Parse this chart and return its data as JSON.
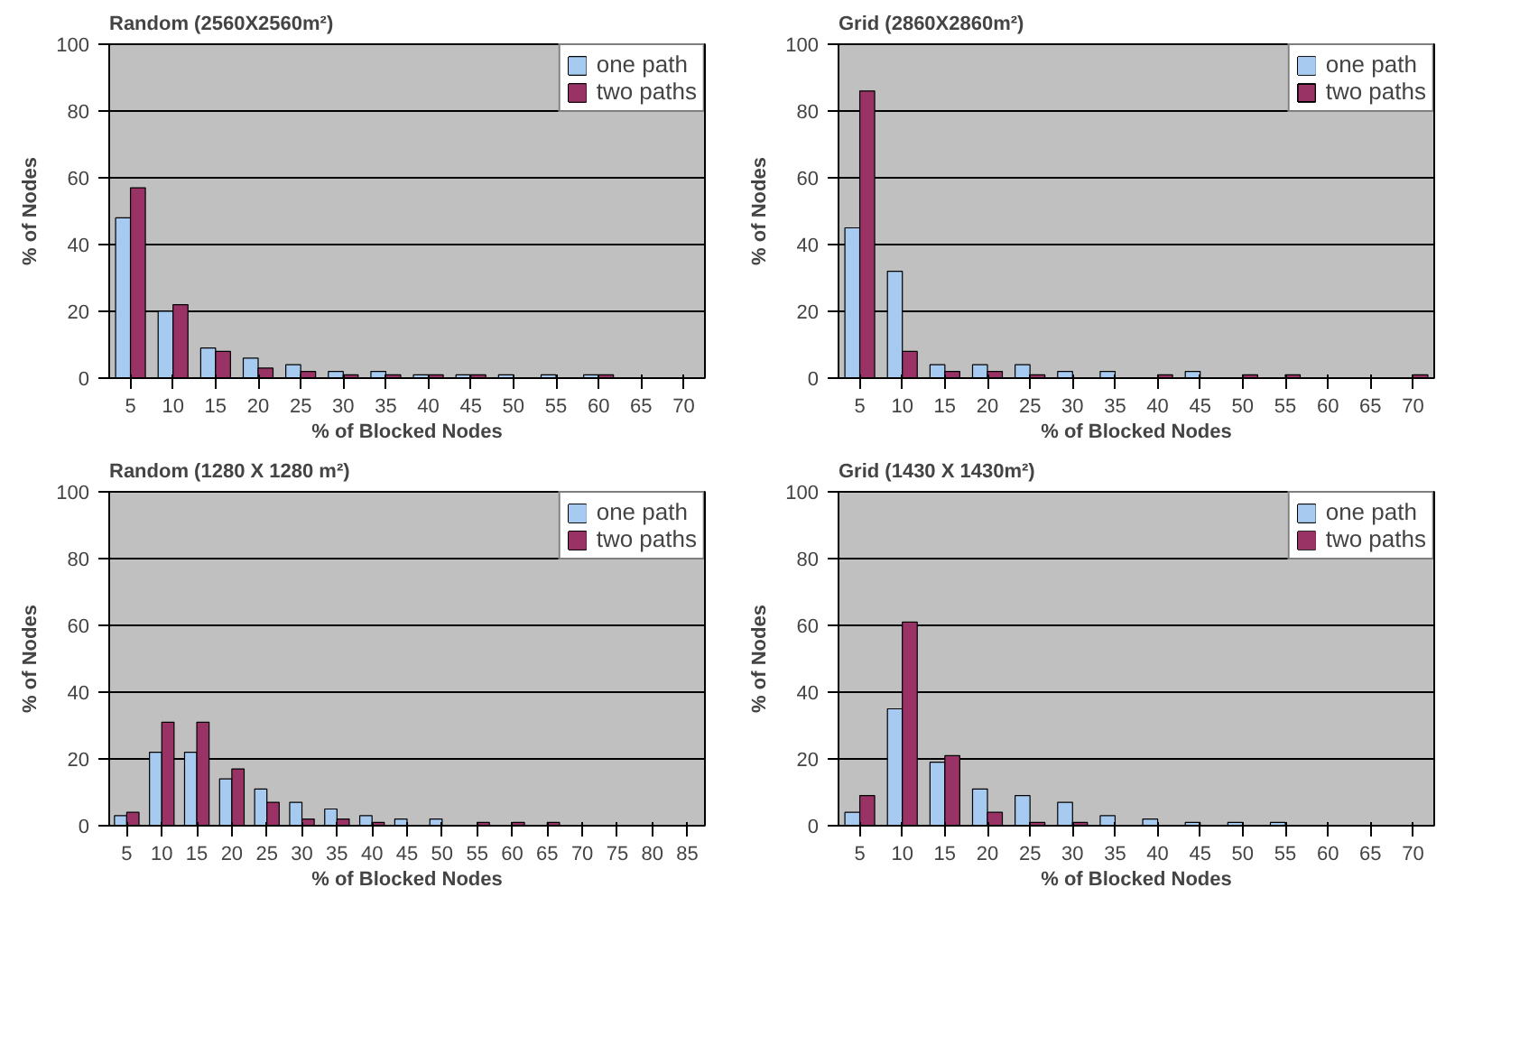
{
  "chart_data": [
    {
      "type": "bar",
      "title": "Random  (2560X2560m²)",
      "xlabel": "% of Blocked Nodes",
      "ylabel": "% of Nodes",
      "categories": [
        "5",
        "10",
        "15",
        "20",
        "25",
        "30",
        "35",
        "40",
        "45",
        "50",
        "55",
        "60",
        "65",
        "70"
      ],
      "ylim": [
        0,
        100
      ],
      "yticks": [
        0,
        20,
        40,
        60,
        80,
        100
      ],
      "grid": "y",
      "legend": "top right",
      "series": [
        {
          "name": "one path",
          "color": "#a6caf0",
          "values": [
            48,
            20,
            9,
            6,
            4,
            2,
            2,
            1,
            1,
            1,
            1,
            1,
            0,
            0
          ]
        },
        {
          "name": "two paths",
          "color": "#993366",
          "values": [
            57,
            22,
            8,
            3,
            2,
            1,
            1,
            1,
            1,
            0,
            0,
            1,
            0,
            0
          ]
        }
      ]
    },
    {
      "type": "bar",
      "title": "Grid (2860X2860m²)",
      "xlabel": "% of Blocked Nodes",
      "ylabel": "% of Nodes",
      "categories": [
        "5",
        "10",
        "15",
        "20",
        "25",
        "30",
        "35",
        "40",
        "45",
        "50",
        "55",
        "60",
        "65",
        "70"
      ],
      "ylim": [
        0,
        100
      ],
      "yticks": [
        0,
        20,
        40,
        60,
        80,
        100
      ],
      "grid": "y",
      "legend": "top right",
      "series": [
        {
          "name": "one path",
          "color": "#a6caf0",
          "values": [
            45,
            32,
            4,
            4,
            4,
            2,
            2,
            0,
            2,
            0,
            0,
            0,
            0,
            0
          ]
        },
        {
          "name": "two paths",
          "color": "#993366",
          "values": [
            86,
            8,
            2,
            2,
            1,
            0,
            0,
            1,
            0,
            1,
            1,
            0,
            0,
            1
          ]
        }
      ]
    },
    {
      "type": "bar",
      "title": "Random  (1280 X 1280 m²)",
      "xlabel": "% of Blocked Nodes",
      "ylabel": "% of Nodes",
      "categories": [
        "5",
        "10",
        "15",
        "20",
        "25",
        "30",
        "35",
        "40",
        "45",
        "50",
        "55",
        "60",
        "65",
        "70",
        "75",
        "80",
        "85"
      ],
      "ylim": [
        0,
        100
      ],
      "yticks": [
        0,
        20,
        40,
        60,
        80,
        100
      ],
      "grid": "y",
      "legend": "top right",
      "series": [
        {
          "name": "one path",
          "color": "#a6caf0",
          "values": [
            3,
            22,
            22,
            14,
            11,
            7,
            5,
            3,
            2,
            2,
            0,
            0,
            0,
            0,
            0,
            0,
            0
          ]
        },
        {
          "name": "two paths",
          "color": "#993366",
          "values": [
            4,
            31,
            31,
            17,
            7,
            2,
            2,
            1,
            0,
            0,
            1,
            1,
            1,
            0,
            0,
            0,
            0
          ]
        }
      ]
    },
    {
      "type": "bar",
      "title": "Grid  (1430 X 1430m²)",
      "xlabel": "% of Blocked Nodes",
      "ylabel": "% of Nodes",
      "categories": [
        "5",
        "10",
        "15",
        "20",
        "25",
        "30",
        "35",
        "40",
        "45",
        "50",
        "55",
        "60",
        "65",
        "70"
      ],
      "ylim": [
        0,
        100
      ],
      "yticks": [
        0,
        20,
        40,
        60,
        80,
        100
      ],
      "grid": "y",
      "legend": "top right",
      "series": [
        {
          "name": "one path",
          "color": "#a6caf0",
          "values": [
            4,
            35,
            19,
            11,
            9,
            7,
            3,
            2,
            1,
            1,
            1,
            0,
            0,
            0
          ]
        },
        {
          "name": "two paths",
          "color": "#993366",
          "values": [
            9,
            61,
            21,
            4,
            1,
            1,
            0,
            0,
            0,
            0,
            0,
            0,
            0,
            0
          ]
        }
      ]
    }
  ]
}
